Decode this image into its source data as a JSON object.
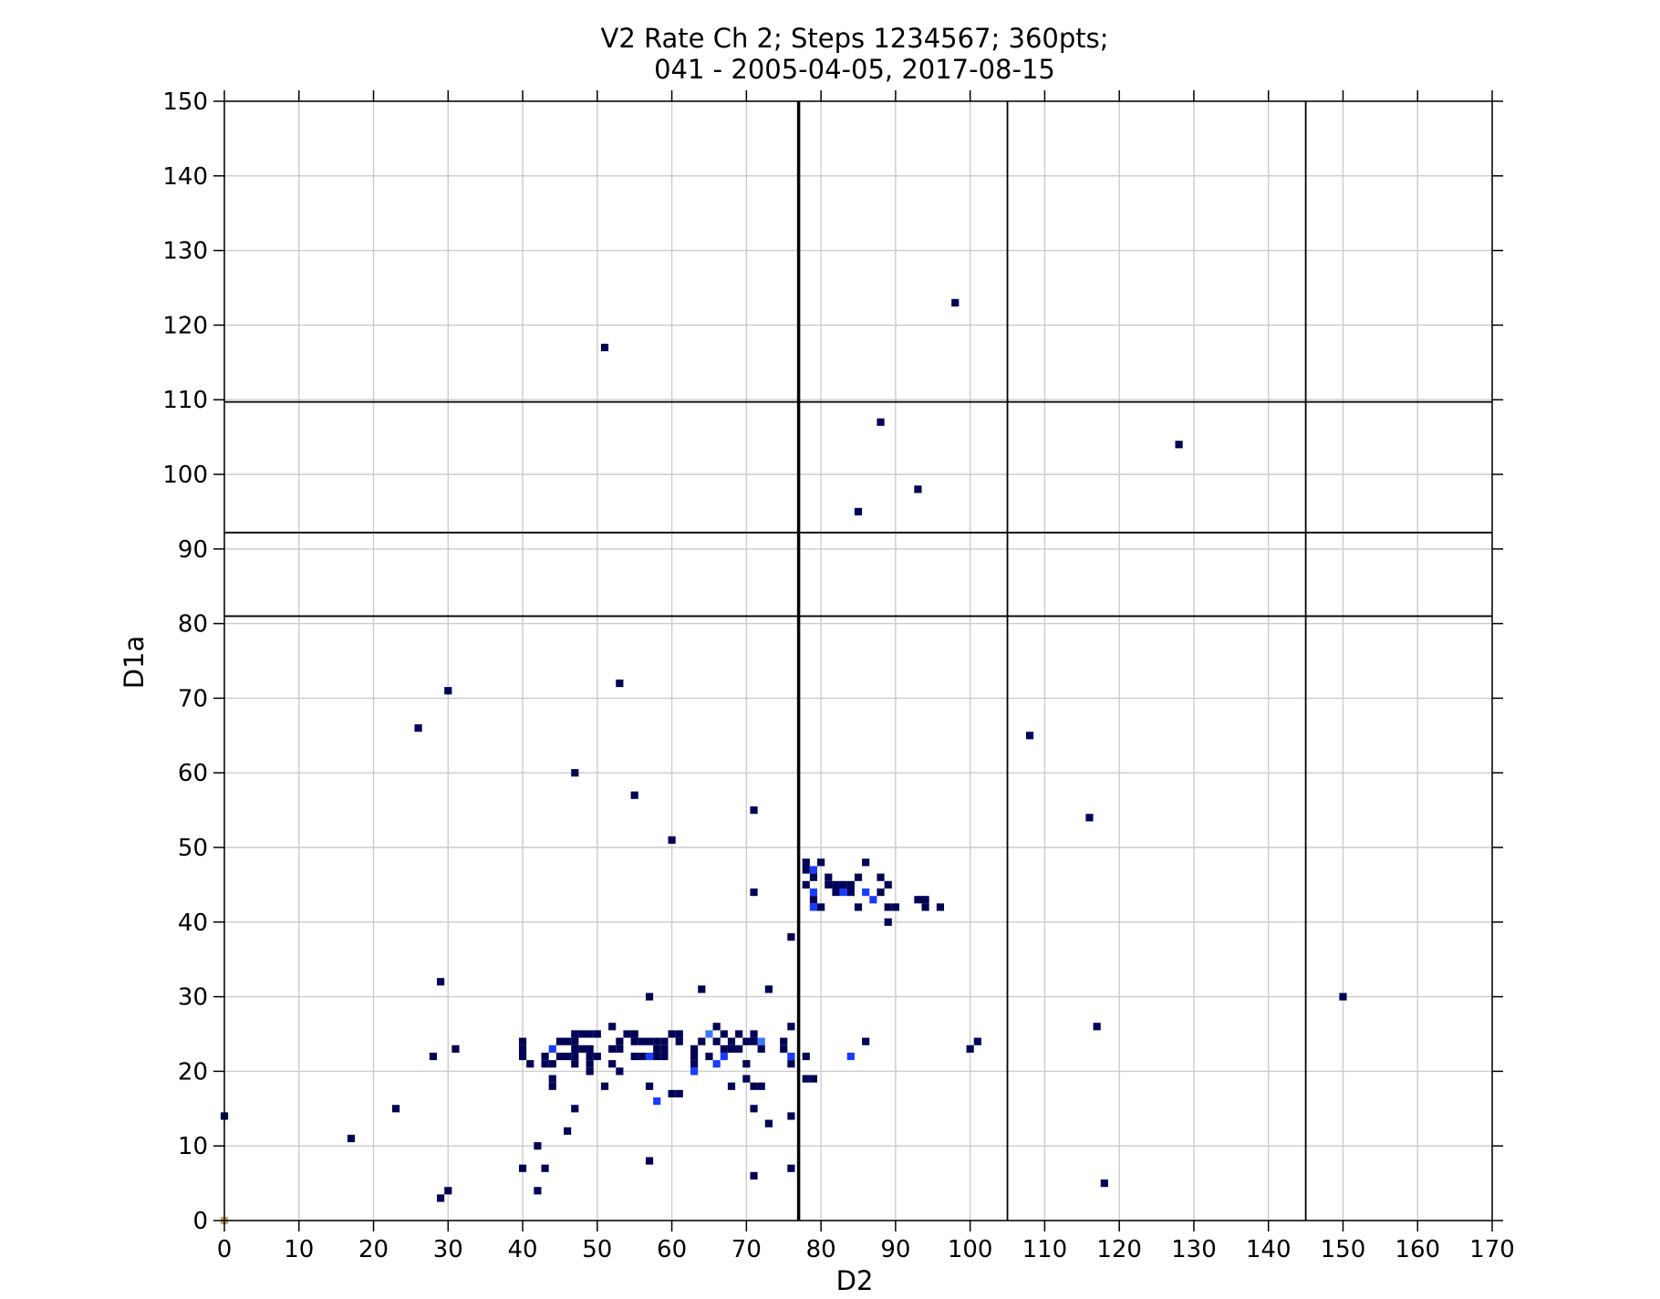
{
  "chart_data": {
    "type": "heatmap",
    "title_line1": "V2 Rate Ch 2; Steps 1234567; 360pts;",
    "title_line2": "041 - 2005-04-05, 2017-08-15",
    "xlabel": "D2",
    "ylabel": "D1a",
    "xlim": [
      0,
      170
    ],
    "ylim": [
      0,
      150
    ],
    "xticks": [
      0,
      10,
      20,
      30,
      40,
      50,
      60,
      70,
      80,
      90,
      100,
      110,
      120,
      130,
      140,
      150,
      160,
      170
    ],
    "yticks": [
      0,
      10,
      20,
      30,
      40,
      50,
      60,
      70,
      80,
      90,
      100,
      110,
      120,
      130,
      140,
      150
    ],
    "grid": true,
    "colors": {
      "low": "#000055",
      "mid": "#1a3cff",
      "high": "#3a78ff",
      "outlier": "#c8a060",
      "grid": "#cccccc",
      "ref_line": "#000000"
    },
    "reference_lines": {
      "vertical": [
        77,
        105,
        145
      ],
      "horizontal": [
        81,
        92.2,
        109.7
      ]
    },
    "cells": [
      [
        98,
        123,
        0
      ],
      [
        51,
        117,
        0
      ],
      [
        88,
        107,
        0
      ],
      [
        128,
        104,
        0
      ],
      [
        93,
        98,
        0
      ],
      [
        85,
        95,
        0
      ],
      [
        53,
        72,
        0
      ],
      [
        30,
        71,
        0
      ],
      [
        26,
        66,
        0
      ],
      [
        108,
        65,
        0
      ],
      [
        47,
        60,
        0
      ],
      [
        55,
        57,
        0
      ],
      [
        71,
        55,
        0
      ],
      [
        116,
        54,
        0
      ],
      [
        60,
        51,
        0
      ],
      [
        78,
        48,
        0
      ],
      [
        80,
        48,
        0
      ],
      [
        86,
        48,
        0
      ],
      [
        78,
        47,
        0
      ],
      [
        79,
        47,
        1
      ],
      [
        81,
        46,
        0
      ],
      [
        85,
        46,
        0
      ],
      [
        88,
        46,
        0
      ],
      [
        79,
        46,
        0
      ],
      [
        78,
        45,
        0
      ],
      [
        81,
        45,
        0
      ],
      [
        82,
        45,
        0
      ],
      [
        83,
        45,
        0
      ],
      [
        84,
        45,
        0
      ],
      [
        89,
        45,
        0
      ],
      [
        79,
        44,
        1
      ],
      [
        82,
        44,
        0
      ],
      [
        83,
        44,
        1
      ],
      [
        84,
        44,
        0
      ],
      [
        86,
        44,
        1
      ],
      [
        88,
        44,
        0
      ],
      [
        71,
        44,
        0
      ],
      [
        79,
        43,
        0
      ],
      [
        87,
        43,
        1
      ],
      [
        93,
        43,
        0
      ],
      [
        94,
        43,
        0
      ],
      [
        79,
        42,
        1
      ],
      [
        80,
        42,
        0
      ],
      [
        85,
        42,
        0
      ],
      [
        89,
        42,
        0
      ],
      [
        90,
        42,
        0
      ],
      [
        94,
        42,
        0
      ],
      [
        96,
        42,
        0
      ],
      [
        89,
        40,
        0
      ],
      [
        76,
        38,
        0
      ],
      [
        29,
        32,
        0
      ],
      [
        64,
        31,
        0
      ],
      [
        73,
        31,
        0
      ],
      [
        57,
        30,
        0
      ],
      [
        150,
        30,
        0
      ],
      [
        52,
        26,
        0
      ],
      [
        66,
        26,
        0
      ],
      [
        76,
        26,
        0
      ],
      [
        117,
        26,
        0
      ],
      [
        47,
        25,
        0
      ],
      [
        48,
        25,
        0
      ],
      [
        49,
        25,
        0
      ],
      [
        50,
        25,
        0
      ],
      [
        54,
        25,
        0
      ],
      [
        55,
        25,
        0
      ],
      [
        60,
        25,
        0
      ],
      [
        61,
        25,
        0
      ],
      [
        65,
        25,
        2
      ],
      [
        67,
        25,
        0
      ],
      [
        69,
        25,
        0
      ],
      [
        71,
        25,
        0
      ],
      [
        40,
        24,
        0
      ],
      [
        45,
        24,
        0
      ],
      [
        46,
        24,
        0
      ],
      [
        47,
        24,
        0
      ],
      [
        53,
        24,
        0
      ],
      [
        55,
        24,
        0
      ],
      [
        56,
        24,
        0
      ],
      [
        57,
        24,
        0
      ],
      [
        58,
        24,
        0
      ],
      [
        59,
        24,
        0
      ],
      [
        61,
        24,
        0
      ],
      [
        64,
        24,
        0
      ],
      [
        66,
        24,
        0
      ],
      [
        68,
        24,
        0
      ],
      [
        70,
        24,
        0
      ],
      [
        71,
        24,
        0
      ],
      [
        72,
        24,
        2
      ],
      [
        75,
        24,
        0
      ],
      [
        86,
        24,
        0
      ],
      [
        101,
        24,
        0
      ],
      [
        31,
        23,
        0
      ],
      [
        40,
        23,
        0
      ],
      [
        44,
        23,
        1
      ],
      [
        47,
        23,
        0
      ],
      [
        48,
        23,
        0
      ],
      [
        49,
        23,
        0
      ],
      [
        52,
        23,
        0
      ],
      [
        53,
        23,
        0
      ],
      [
        58,
        23,
        0
      ],
      [
        59,
        23,
        0
      ],
      [
        63,
        23,
        0
      ],
      [
        67,
        23,
        0
      ],
      [
        68,
        23,
        0
      ],
      [
        69,
        23,
        0
      ],
      [
        72,
        23,
        0
      ],
      [
        75,
        23,
        0
      ],
      [
        100,
        23,
        0
      ],
      [
        28,
        22,
        0
      ],
      [
        40,
        22,
        0
      ],
      [
        43,
        22,
        0
      ],
      [
        45,
        22,
        0
      ],
      [
        46,
        22,
        0
      ],
      [
        47,
        22,
        0
      ],
      [
        49,
        22,
        0
      ],
      [
        50,
        22,
        0
      ],
      [
        55,
        22,
        0
      ],
      [
        56,
        22,
        0
      ],
      [
        57,
        22,
        1
      ],
      [
        58,
        22,
        0
      ],
      [
        59,
        22,
        0
      ],
      [
        63,
        22,
        0
      ],
      [
        65,
        22,
        0
      ],
      [
        67,
        22,
        1
      ],
      [
        76,
        22,
        1
      ],
      [
        78,
        22,
        0
      ],
      [
        84,
        22,
        1
      ],
      [
        41,
        21,
        0
      ],
      [
        43,
        21,
        0
      ],
      [
        44,
        21,
        0
      ],
      [
        47,
        21,
        0
      ],
      [
        49,
        21,
        0
      ],
      [
        52,
        21,
        0
      ],
      [
        63,
        21,
        0
      ],
      [
        66,
        21,
        1
      ],
      [
        70,
        21,
        0
      ],
      [
        76,
        21,
        0
      ],
      [
        49,
        20,
        0
      ],
      [
        53,
        20,
        0
      ],
      [
        63,
        20,
        1
      ],
      [
        44,
        19,
        0
      ],
      [
        70,
        19,
        0
      ],
      [
        78,
        19,
        0
      ],
      [
        79,
        19,
        0
      ],
      [
        44,
        18,
        0
      ],
      [
        51,
        18,
        0
      ],
      [
        57,
        18,
        0
      ],
      [
        68,
        18,
        0
      ],
      [
        71,
        18,
        0
      ],
      [
        72,
        18,
        0
      ],
      [
        60,
        17,
        0
      ],
      [
        61,
        17,
        0
      ],
      [
        58,
        16,
        1
      ],
      [
        23,
        15,
        0
      ],
      [
        47,
        15,
        0
      ],
      [
        71,
        15,
        0
      ],
      [
        0,
        14,
        0
      ],
      [
        76,
        14,
        0
      ],
      [
        73,
        13,
        0
      ],
      [
        46,
        12,
        0
      ],
      [
        17,
        11,
        0
      ],
      [
        42,
        10,
        0
      ],
      [
        57,
        8,
        0
      ],
      [
        40,
        7,
        0
      ],
      [
        43,
        7,
        0
      ],
      [
        76,
        7,
        0
      ],
      [
        71,
        6,
        0
      ],
      [
        118,
        5,
        0
      ],
      [
        30,
        4,
        0
      ],
      [
        42,
        4,
        0
      ],
      [
        29,
        3,
        0
      ],
      [
        0,
        0,
        3
      ]
    ]
  }
}
